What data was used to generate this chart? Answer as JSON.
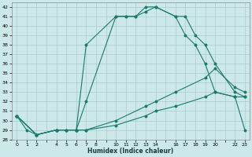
{
  "xlabel": "Humidex (Indice chaleur)",
  "bg_color": "#cce8e8",
  "grid_color": "#aacccc",
  "line_color": "#1a7a6e",
  "xlim": [
    -0.5,
    23.5
  ],
  "ylim": [
    28,
    42.5
  ],
  "yticks": [
    28,
    29,
    30,
    31,
    32,
    33,
    34,
    35,
    36,
    37,
    38,
    39,
    40,
    41,
    42
  ],
  "xtick_positions": [
    0,
    1,
    2,
    4,
    5,
    6,
    7,
    8,
    10,
    11,
    12,
    13,
    14,
    16,
    17,
    18,
    19,
    20,
    22,
    23
  ],
  "xtick_labels": [
    "0",
    "1",
    "2",
    "4",
    "5",
    "6",
    "7",
    "8",
    "10",
    "11",
    "12",
    "13",
    "14",
    "16",
    "17",
    "18",
    "19",
    "20",
    "22",
    "23"
  ],
  "curves": [
    {
      "x": [
        0,
        1,
        2,
        4,
        5,
        6,
        7,
        10,
        11,
        12,
        13,
        14,
        16,
        17,
        18,
        19,
        20,
        22,
        23
      ],
      "y": [
        30.5,
        29.0,
        28.5,
        29.0,
        29.0,
        29.0,
        32.0,
        41.0,
        41.0,
        41.0,
        41.5,
        42.0,
        41.0,
        41.0,
        39.0,
        38.0,
        36.0,
        33.0,
        32.5
      ]
    },
    {
      "x": [
        0,
        2,
        4,
        5,
        6,
        7,
        10,
        11,
        12,
        13,
        14,
        16,
        17,
        18,
        19,
        20,
        22,
        23
      ],
      "y": [
        30.5,
        28.5,
        29.0,
        29.0,
        29.0,
        38.0,
        41.0,
        41.0,
        41.0,
        42.0,
        42.0,
        41.0,
        39.0,
        38.0,
        36.0,
        33.0,
        32.5,
        29.0
      ]
    },
    {
      "x": [
        0,
        2,
        4,
        5,
        6,
        7,
        10,
        13,
        14,
        16,
        19,
        20,
        22,
        23
      ],
      "y": [
        30.5,
        28.5,
        29.0,
        29.0,
        29.0,
        29.0,
        30.0,
        31.5,
        32.0,
        33.0,
        34.5,
        35.5,
        33.5,
        33.0
      ]
    },
    {
      "x": [
        0,
        2,
        4,
        6,
        7,
        10,
        13,
        14,
        16,
        19,
        20,
        22,
        23
      ],
      "y": [
        30.5,
        28.5,
        29.0,
        29.0,
        29.0,
        29.5,
        30.5,
        31.0,
        31.5,
        32.5,
        33.0,
        32.5,
        32.5
      ]
    }
  ]
}
